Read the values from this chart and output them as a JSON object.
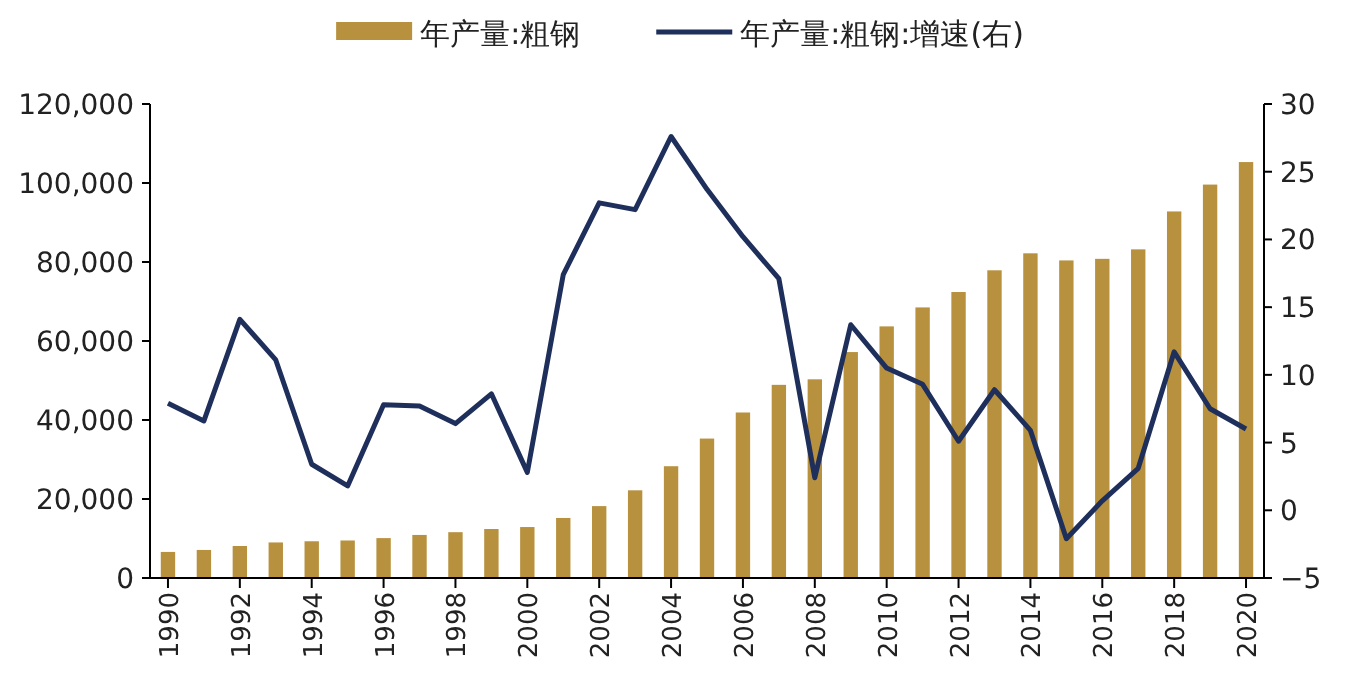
{
  "chart_data": {
    "type": "bar",
    "categories": [
      "1990",
      null,
      "1992",
      null,
      "1994",
      null,
      "1996",
      null,
      "1998",
      null,
      "2000",
      null,
      "2002",
      null,
      "2004",
      null,
      "2006",
      null,
      "2008",
      null,
      "2010",
      null,
      "2012",
      null,
      "2014",
      null,
      "2016",
      null,
      "2018",
      null,
      "2020"
    ],
    "series": [
      {
        "name": "年产量:粗钢",
        "color": "#b8913e",
        "values": [
          6600,
          7100,
          8100,
          9000,
          9300,
          9500,
          10100,
          10900,
          11600,
          12400,
          12900,
          15200,
          18200,
          22200,
          28300,
          35300,
          41900,
          48900,
          50300,
          57200,
          63700,
          68500,
          72400,
          77900,
          82200,
          80400,
          80800,
          83200,
          92800,
          99600,
          105300
        ]
      },
      {
        "name": "年产量:粗钢:增速(右)",
        "type": "line",
        "axis": "y2",
        "color": "#1f2f5c",
        "values": [
          7.9,
          6.6,
          14.1,
          11.1,
          3.4,
          1.8,
          7.8,
          7.7,
          6.4,
          8.6,
          2.8,
          17.4,
          22.7,
          22.2,
          27.6,
          23.7,
          20.2,
          17.1,
          2.4,
          13.7,
          10.5,
          9.3,
          5.1,
          8.9,
          5.9,
          -2.1,
          0.7,
          3.1,
          11.7,
          7.5,
          6.0
        ]
      }
    ],
    "ylim": [
      0,
      120000
    ],
    "yticks": [
      0,
      {
        "value": 20000,
        "label": "20,000"
      },
      {
        "value": 40000,
        "label": "40,000"
      },
      {
        "value": 60000,
        "label": "60,000"
      },
      {
        "value": 80000,
        "label": "80,000"
      },
      {
        "value": 100000,
        "label": "100,000"
      },
      {
        "value": 120000,
        "label": "120,000"
      }
    ],
    "y2lim": [
      -5,
      30
    ],
    "y2ticks": [
      -5,
      0,
      5,
      10,
      15,
      20,
      25,
      30
    ],
    "legend": "top",
    "grid": false,
    "marker": "none",
    "line_style": "solid"
  }
}
